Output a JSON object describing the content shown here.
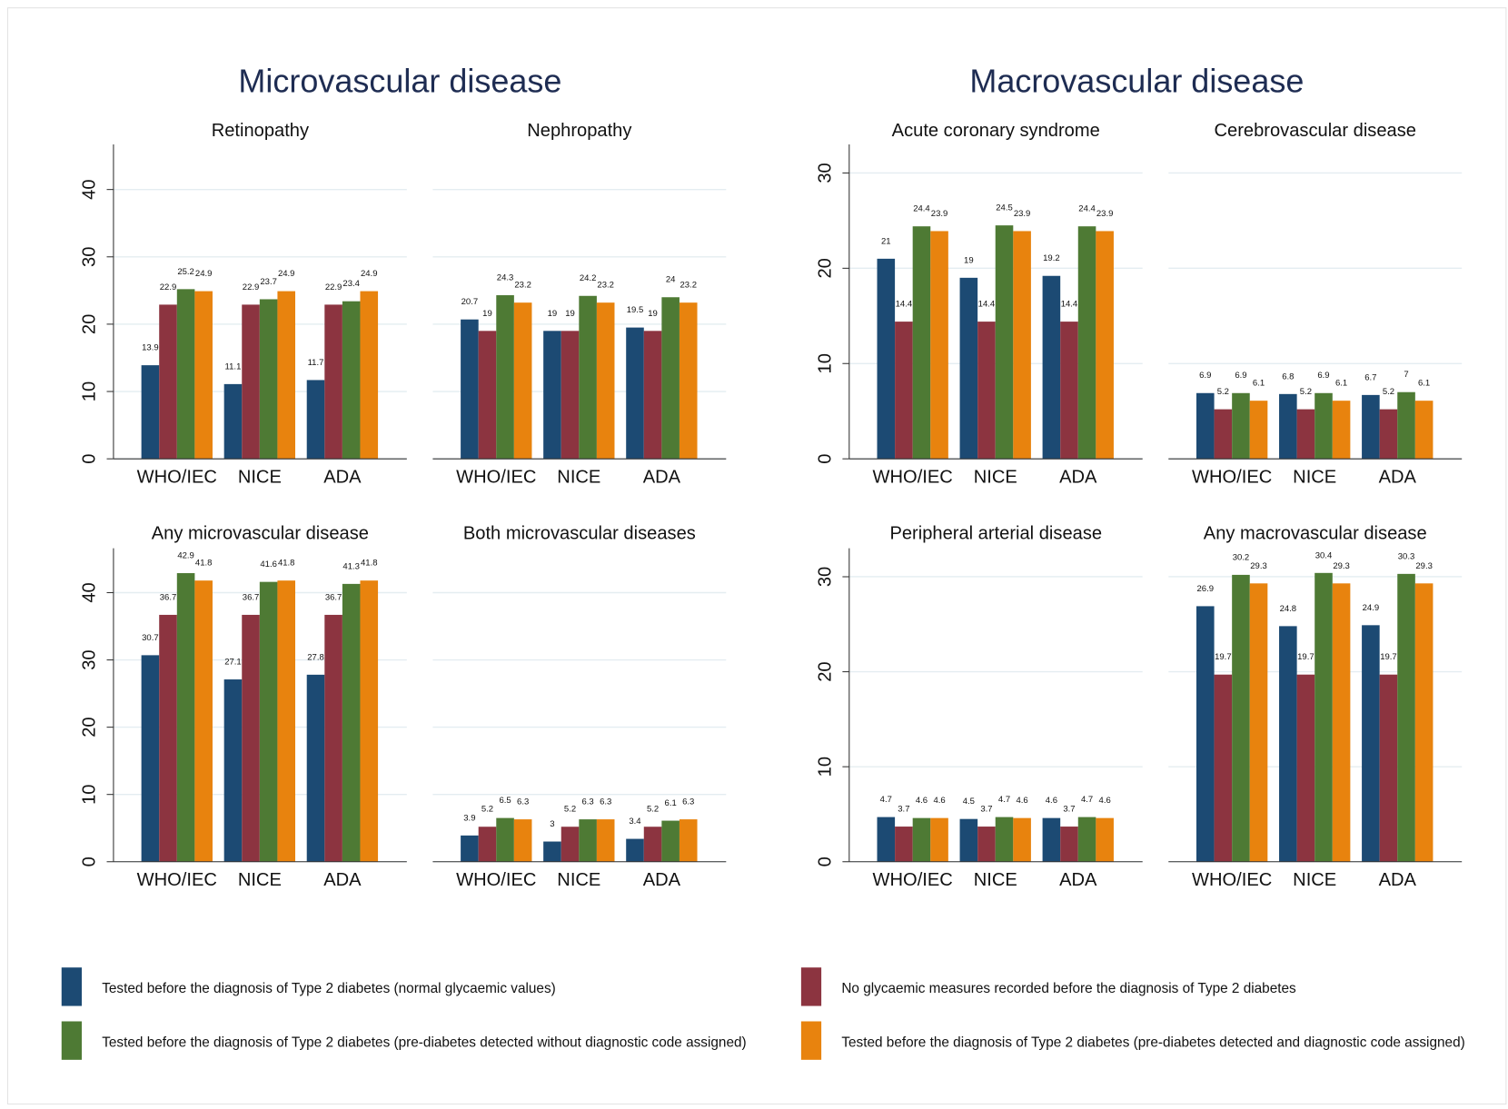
{
  "headings": [
    "Microvascular disease",
    "Macrovascular disease"
  ],
  "chart_data": [
    {
      "type": "bar",
      "title": "Retinopathy",
      "categories": [
        "WHO/IEC",
        "NICE",
        "ADA"
      ],
      "ylim": [
        0,
        46.7
      ],
      "yticks": [
        0,
        10,
        20,
        30,
        40
      ],
      "grid": true,
      "series": [
        {
          "name": "Tested before the diagnosis of Type 2 diabetes (normal glycaemic values)",
          "color": "#1c4a73",
          "values": [
            13.9,
            11.1,
            11.7
          ]
        },
        {
          "name": "No glycaemic measures recorded before the diagnosis of Type 2 diabetes",
          "color": "#8c3440",
          "values": [
            22.9,
            22.9,
            22.9
          ]
        },
        {
          "name": "Tested before the diagnosis of Type 2 diabetes (pre-diabetes detected without diagnostic code assigned)",
          "color": "#4e7a34",
          "values": [
            25.2,
            23.7,
            23.4
          ]
        },
        {
          "name": "Tested before the diagnosis of Type 2 diabetes (pre-diabetes detected and diagnostic code assigned)",
          "color": "#e8830e",
          "values": [
            24.9,
            24.9,
            24.9
          ]
        }
      ]
    },
    {
      "type": "bar",
      "title": "Nephropathy",
      "categories": [
        "WHO/IEC",
        "NICE",
        "ADA"
      ],
      "ylim": [
        0,
        46.7
      ],
      "yticks": [
        0,
        10,
        20,
        30,
        40
      ],
      "grid": true,
      "series": [
        {
          "name": "Tested before the diagnosis of Type 2 diabetes (normal glycaemic values)",
          "color": "#1c4a73",
          "values": [
            20.7,
            19,
            19.5
          ]
        },
        {
          "name": "No glycaemic measures recorded before the diagnosis of Type 2 diabetes",
          "color": "#8c3440",
          "values": [
            19,
            19,
            19
          ]
        },
        {
          "name": "Tested before the diagnosis of Type 2 diabetes (pre-diabetes detected without diagnostic code assigned)",
          "color": "#4e7a34",
          "values": [
            24.3,
            24.2,
            24
          ]
        },
        {
          "name": "Tested before the diagnosis of Type 2 diabetes (pre-diabetes detected and diagnostic code assigned)",
          "color": "#e8830e",
          "values": [
            23.2,
            23.2,
            23.2
          ]
        }
      ]
    },
    {
      "type": "bar",
      "title": "Acute coronary syndrome",
      "categories": [
        "WHO/IEC",
        "NICE",
        "ADA"
      ],
      "ylim": [
        0,
        33
      ],
      "yticks": [
        0,
        10,
        20,
        30
      ],
      "grid": true,
      "series": [
        {
          "name": "Tested before the diagnosis of Type 2 diabetes (normal glycaemic values)",
          "color": "#1c4a73",
          "values": [
            21,
            19,
            19.2
          ]
        },
        {
          "name": "No glycaemic measures recorded before the diagnosis of Type 2 diabetes",
          "color": "#8c3440",
          "values": [
            14.4,
            14.4,
            14.4
          ]
        },
        {
          "name": "Tested before the diagnosis of Type 2 diabetes (pre-diabetes detected without diagnostic code assigned)",
          "color": "#4e7a34",
          "values": [
            24.4,
            24.5,
            24.4
          ]
        },
        {
          "name": "Tested before the diagnosis of Type 2 diabetes (pre-diabetes detected and diagnostic code assigned)",
          "color": "#e8830e",
          "values": [
            23.9,
            23.9,
            23.9
          ]
        }
      ]
    },
    {
      "type": "bar",
      "title": "Cerebrovascular disease",
      "categories": [
        "WHO/IEC",
        "NICE",
        "ADA"
      ],
      "ylim": [
        0,
        33
      ],
      "yticks": [
        0,
        10,
        20,
        30
      ],
      "grid": true,
      "series": [
        {
          "name": "Tested before the diagnosis of Type 2 diabetes (normal glycaemic values)",
          "color": "#1c4a73",
          "values": [
            6.9,
            6.8,
            6.7
          ]
        },
        {
          "name": "No glycaemic measures recorded before the diagnosis of Type 2 diabetes",
          "color": "#8c3440",
          "values": [
            5.2,
            5.2,
            5.2
          ]
        },
        {
          "name": "Tested before the diagnosis of Type 2 diabetes (pre-diabetes detected without diagnostic code assigned)",
          "color": "#4e7a34",
          "values": [
            6.9,
            6.9,
            7
          ]
        },
        {
          "name": "Tested before the diagnosis of Type 2 diabetes (pre-diabetes detected and diagnostic code assigned)",
          "color": "#e8830e",
          "values": [
            6.1,
            6.1,
            6.1
          ]
        }
      ]
    },
    {
      "type": "bar",
      "title": "Any microvascular disease",
      "categories": [
        "WHO/IEC",
        "NICE",
        "ADA"
      ],
      "ylim": [
        0,
        46.6
      ],
      "yticks": [
        0,
        10,
        20,
        30,
        40
      ],
      "grid": true,
      "series": [
        {
          "name": "Tested before the diagnosis of Type 2 diabetes (normal glycaemic values)",
          "color": "#1c4a73",
          "values": [
            30.7,
            27.1,
            27.8
          ]
        },
        {
          "name": "No glycaemic measures recorded before the diagnosis of Type 2 diabetes",
          "color": "#8c3440",
          "values": [
            36.7,
            36.7,
            36.7
          ]
        },
        {
          "name": "Tested before the diagnosis of Type 2 diabetes (pre-diabetes detected without diagnostic code assigned)",
          "color": "#4e7a34",
          "values": [
            42.9,
            41.6,
            41.3
          ]
        },
        {
          "name": "Tested before the diagnosis of Type 2 diabetes (pre-diabetes detected and diagnostic code assigned)",
          "color": "#e8830e",
          "values": [
            41.8,
            41.8,
            41.8
          ]
        }
      ]
    },
    {
      "type": "bar",
      "title": "Both microvascular diseases",
      "categories": [
        "WHO/IEC",
        "NICE",
        "ADA"
      ],
      "ylim": [
        0,
        46.6
      ],
      "yticks": [
        0,
        10,
        20,
        30,
        40
      ],
      "grid": true,
      "series": [
        {
          "name": "Tested before the diagnosis of Type 2 diabetes (normal glycaemic values)",
          "color": "#1c4a73",
          "values": [
            3.9,
            3,
            3.4
          ]
        },
        {
          "name": "No glycaemic measures recorded before the diagnosis of Type 2 diabetes",
          "color": "#8c3440",
          "values": [
            5.2,
            5.2,
            5.2
          ]
        },
        {
          "name": "Tested before the diagnosis of Type 2 diabetes (pre-diabetes detected without diagnostic code assigned)",
          "color": "#4e7a34",
          "values": [
            6.5,
            6.3,
            6.1
          ]
        },
        {
          "name": "Tested before the diagnosis of Type 2 diabetes (pre-diabetes detected and diagnostic code assigned)",
          "color": "#e8830e",
          "values": [
            6.3,
            6.3,
            6.3
          ]
        }
      ]
    },
    {
      "type": "bar",
      "title": "Peripheral arterial disease",
      "categories": [
        "WHO/IEC",
        "NICE",
        "ADA"
      ],
      "ylim": [
        0,
        33
      ],
      "yticks": [
        0,
        10,
        20,
        30
      ],
      "grid": true,
      "series": [
        {
          "name": "Tested before the diagnosis of Type 2 diabetes (normal glycaemic values)",
          "color": "#1c4a73",
          "values": [
            4.7,
            4.5,
            4.6
          ]
        },
        {
          "name": "No glycaemic measures recorded before the diagnosis of Type 2 diabetes",
          "color": "#8c3440",
          "values": [
            3.7,
            3.7,
            3.7
          ]
        },
        {
          "name": "Tested before the diagnosis of Type 2 diabetes (pre-diabetes detected without diagnostic code assigned)",
          "color": "#4e7a34",
          "values": [
            4.6,
            4.7,
            4.7
          ]
        },
        {
          "name": "Tested before the diagnosis of Type 2 diabetes (pre-diabetes detected and diagnostic code assigned)",
          "color": "#e8830e",
          "values": [
            4.6,
            4.6,
            4.6
          ]
        }
      ]
    },
    {
      "type": "bar",
      "title": "Any macrovascular disease",
      "categories": [
        "WHO/IEC",
        "NICE",
        "ADA"
      ],
      "ylim": [
        0,
        33
      ],
      "yticks": [
        0,
        10,
        20,
        30
      ],
      "grid": true,
      "series": [
        {
          "name": "Tested before the diagnosis of Type 2 diabetes (normal glycaemic values)",
          "color": "#1c4a73",
          "values": [
            26.9,
            24.8,
            24.9
          ]
        },
        {
          "name": "No glycaemic measures recorded before the diagnosis of Type 2 diabetes",
          "color": "#8c3440",
          "values": [
            19.7,
            19.7,
            19.7
          ]
        },
        {
          "name": "Tested before the diagnosis of Type 2 diabetes (pre-diabetes detected without diagnostic code assigned)",
          "color": "#4e7a34",
          "values": [
            30.2,
            30.4,
            30.3
          ]
        },
        {
          "name": "Tested before the diagnosis of Type 2 diabetes (pre-diabetes detected and diagnostic code assigned)",
          "color": "#e8830e",
          "values": [
            29.3,
            29.3,
            29.3
          ]
        }
      ]
    }
  ]
}
